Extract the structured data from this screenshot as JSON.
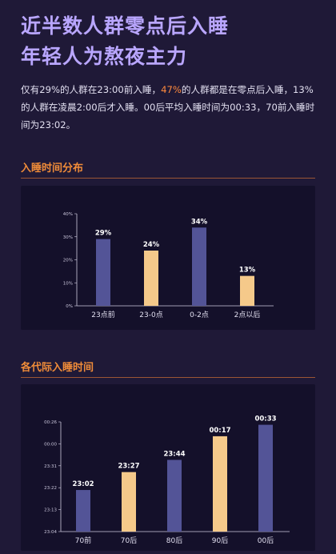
{
  "headline": {
    "line1": "近半数人群零点后入睡",
    "line2": "年轻人为熬夜主力"
  },
  "intro": {
    "p1": "仅有29%的人群在23:00前入睡，",
    "p2": "47%",
    "p3": "的人群都是在零点后入睡，13%的人群在凌晨2:00后才入睡。00后平均入睡时间为00:33，70前入睡时间为23:02。"
  },
  "colors": {
    "purple": "#535497",
    "yellow": "#f5c98a",
    "accent": "#f08c39"
  },
  "chart_data": [
    {
      "type": "bar",
      "title": "入睡时间分布",
      "categories": [
        "23点前",
        "23-0点",
        "0-2点",
        "2点以后"
      ],
      "values": [
        29,
        24,
        34,
        13
      ],
      "data_labels": [
        "29%",
        "24%",
        "34%",
        "13%"
      ],
      "bar_colors": [
        "#535497",
        "#f5c98a",
        "#535497",
        "#f5c98a"
      ],
      "yticks": [
        "0%",
        "10%",
        "20%",
        "30%",
        "40%"
      ],
      "ylim": [
        0,
        40
      ],
      "grid": false
    },
    {
      "type": "bar",
      "title": "各代际入睡时间",
      "categories": [
        "70前",
        "70后",
        "80后",
        "90后",
        "00后"
      ],
      "values": [
        -58,
        -33,
        -16,
        17,
        33
      ],
      "data_labels": [
        "23:02",
        "23:27",
        "23:44",
        "00:17",
        "00:33"
      ],
      "bar_colors": [
        "#535497",
        "#f5c98a",
        "#535497",
        "#f5c98a",
        "#535497"
      ],
      "yticks": [
        "23:04",
        "23:13",
        "23:22",
        "23:31",
        "00:00",
        "00:26"
      ],
      "ylim": [
        -116,
        37
      ],
      "grid": false
    }
  ]
}
